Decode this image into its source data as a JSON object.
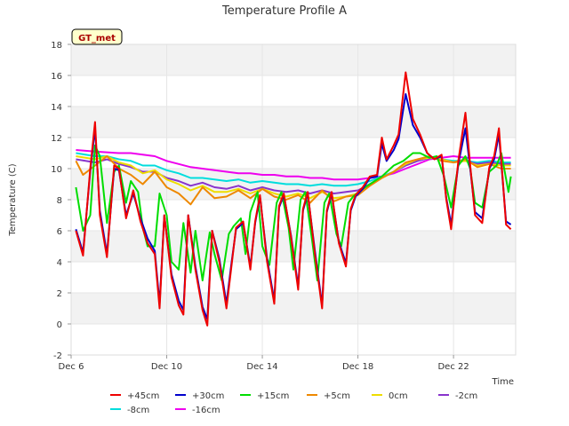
{
  "chart_data": {
    "type": "line",
    "title": "Temperature Profile A",
    "xlabel": "Time",
    "ylabel": "Temperature (C)",
    "badge": "GT_met",
    "ylim": [
      -2,
      18
    ],
    "yticks": [
      "-2",
      "0",
      "2",
      "4",
      "6",
      "8",
      "10",
      "12",
      "14",
      "16",
      "18"
    ],
    "xlim_days": [
      6,
      24.6
    ],
    "xticks": [
      {
        "label": "Dec 6",
        "day": 6
      },
      {
        "label": "Dec 10",
        "day": 10
      },
      {
        "label": "Dec 14",
        "day": 14
      },
      {
        "label": "Dec 18",
        "day": 18
      },
      {
        "label": "Dec 22",
        "day": 22
      }
    ],
    "grid": true,
    "legend_position": "bottom",
    "series": [
      {
        "name": "+45cm",
        "color": "#ee0000",
        "x": [
          6.2,
          6.5,
          6.8,
          7.0,
          7.2,
          7.5,
          7.8,
          8.0,
          8.3,
          8.6,
          8.9,
          9.2,
          9.5,
          9.7,
          9.9,
          10.2,
          10.5,
          10.7,
          10.9,
          11.2,
          11.5,
          11.7,
          11.9,
          12.2,
          12.5,
          12.7,
          12.9,
          13.2,
          13.5,
          13.7,
          13.9,
          14.2,
          14.5,
          14.7,
          14.9,
          15.2,
          15.5,
          15.7,
          15.9,
          16.2,
          16.5,
          16.7,
          16.9,
          17.2,
          17.5,
          17.7,
          17.9,
          18.2,
          18.5,
          18.8,
          19.0,
          19.2,
          19.5,
          19.7,
          20.0,
          20.3,
          20.6,
          20.9,
          21.2,
          21.5,
          21.7,
          21.9,
          22.2,
          22.5,
          22.7,
          22.9,
          23.2,
          23.5,
          23.7,
          23.9,
          24.2,
          24.4
        ],
        "y": [
          6.0,
          4.4,
          10.0,
          13.0,
          7.0,
          4.3,
          10.2,
          10.0,
          6.8,
          8.6,
          6.6,
          5.2,
          4.5,
          1.0,
          7.0,
          3.0,
          1.2,
          0.6,
          7.0,
          3.5,
          0.9,
          -0.1,
          6.0,
          4.0,
          1.0,
          3.6,
          6.2,
          6.6,
          3.5,
          6.6,
          8.3,
          4.0,
          1.3,
          7.6,
          8.4,
          5.6,
          2.2,
          7.4,
          8.5,
          4.5,
          1.0,
          7.3,
          8.5,
          5.2,
          3.7,
          7.4,
          8.3,
          8.8,
          9.5,
          9.6,
          12.0,
          10.6,
          11.5,
          12.2,
          16.2,
          13.2,
          12.2,
          11.0,
          10.6,
          10.9,
          8.0,
          6.1,
          10.5,
          13.6,
          10.2,
          7.0,
          6.5,
          10.1,
          10.8,
          12.6,
          6.4,
          6.1
        ]
      },
      {
        "name": "+30cm",
        "color": "#0000cc",
        "x": [
          6.2,
          6.5,
          6.8,
          7.0,
          7.2,
          7.5,
          7.8,
          8.0,
          8.3,
          8.6,
          8.9,
          9.2,
          9.5,
          9.7,
          9.9,
          10.2,
          10.5,
          10.7,
          10.9,
          11.2,
          11.5,
          11.7,
          11.9,
          12.2,
          12.5,
          12.7,
          12.9,
          13.2,
          13.5,
          13.7,
          13.9,
          14.2,
          14.5,
          14.7,
          14.9,
          15.2,
          15.5,
          15.7,
          15.9,
          16.2,
          16.5,
          16.7,
          16.9,
          17.2,
          17.5,
          17.7,
          17.9,
          18.2,
          18.5,
          18.8,
          19.0,
          19.2,
          19.5,
          19.7,
          20.0,
          20.3,
          20.6,
          20.9,
          21.2,
          21.5,
          21.7,
          21.9,
          22.2,
          22.5,
          22.7,
          22.9,
          23.2,
          23.5,
          23.7,
          23.9,
          24.2,
          24.4
        ],
        "y": [
          6.1,
          4.6,
          9.8,
          12.6,
          7.3,
          4.5,
          10.0,
          9.9,
          7.0,
          8.4,
          6.8,
          5.5,
          4.7,
          1.3,
          7.0,
          3.2,
          1.5,
          0.9,
          7.0,
          3.7,
          1.1,
          0.3,
          6.0,
          4.2,
          1.3,
          3.8,
          6.1,
          6.5,
          3.7,
          6.5,
          8.2,
          4.2,
          1.5,
          7.5,
          8.3,
          5.7,
          2.4,
          7.3,
          8.4,
          4.7,
          1.2,
          7.2,
          8.4,
          5.3,
          3.9,
          7.3,
          8.2,
          8.7,
          9.4,
          9.5,
          11.6,
          10.5,
          11.2,
          11.9,
          14.8,
          12.8,
          12.0,
          11.0,
          10.6,
          10.8,
          8.1,
          6.4,
          10.3,
          12.6,
          10.0,
          7.2,
          6.8,
          10.0,
          10.6,
          12.2,
          6.6,
          6.4
        ]
      },
      {
        "name": "+15cm",
        "color": "#00dd00",
        "x": [
          6.2,
          6.5,
          6.8,
          7.0,
          7.2,
          7.5,
          7.8,
          8.0,
          8.3,
          8.5,
          8.8,
          9.0,
          9.2,
          9.5,
          9.7,
          10.0,
          10.2,
          10.5,
          10.7,
          11.0,
          11.2,
          11.5,
          11.8,
          12.0,
          12.3,
          12.6,
          12.8,
          13.1,
          13.3,
          13.5,
          13.8,
          14.0,
          14.3,
          14.6,
          14.8,
          15.1,
          15.3,
          15.6,
          15.8,
          16.1,
          16.3,
          16.6,
          16.8,
          17.1,
          17.3,
          17.6,
          17.8,
          18.1,
          18.5,
          19.0,
          19.5,
          19.9,
          20.3,
          20.6,
          21.0,
          21.3,
          21.6,
          21.9,
          22.2,
          22.5,
          22.7,
          22.9,
          23.2,
          23.5,
          23.8,
          24.0,
          24.3,
          24.4
        ],
        "y": [
          8.8,
          6.0,
          7.0,
          11.5,
          10.8,
          6.5,
          9.8,
          10.2,
          7.8,
          9.2,
          8.5,
          6.2,
          5.0,
          5.0,
          8.4,
          7.0,
          4.0,
          3.5,
          6.5,
          3.3,
          6.0,
          2.8,
          5.9,
          4.5,
          2.8,
          5.8,
          6.3,
          6.8,
          4.5,
          7.2,
          8.5,
          5.0,
          3.8,
          7.8,
          8.5,
          6.2,
          3.5,
          8.0,
          8.5,
          5.2,
          2.8,
          7.8,
          8.4,
          5.8,
          5.0,
          7.8,
          8.2,
          8.6,
          9.0,
          9.5,
          10.2,
          10.5,
          11.0,
          11.0,
          10.7,
          10.8,
          9.5,
          7.5,
          10.2,
          10.8,
          10.0,
          7.8,
          7.5,
          9.8,
          10.2,
          11.0,
          8.5,
          9.5
        ]
      },
      {
        "name": "+5cm",
        "color": "#ee8800",
        "x": [
          6.2,
          6.5,
          7.0,
          7.5,
          8.0,
          8.5,
          9.0,
          9.5,
          10.0,
          10.5,
          11.0,
          11.5,
          12.0,
          12.5,
          13.0,
          13.5,
          14.0,
          14.5,
          15.0,
          15.5,
          16.0,
          16.5,
          17.0,
          17.5,
          18.0,
          18.5,
          19.0,
          19.5,
          20.0,
          20.5,
          21.0,
          21.5,
          22.0,
          22.5,
          23.0,
          23.5,
          24.0,
          24.4
        ],
        "y": [
          10.5,
          9.6,
          10.2,
          10.8,
          10.0,
          9.6,
          9.0,
          9.8,
          8.8,
          8.4,
          7.7,
          8.8,
          8.1,
          8.2,
          8.6,
          8.1,
          8.7,
          8.2,
          8.0,
          8.3,
          7.8,
          8.6,
          7.9,
          8.2,
          8.3,
          8.9,
          9.4,
          9.8,
          10.4,
          10.6,
          10.8,
          10.5,
          10.4,
          10.6,
          10.1,
          10.3,
          10.0,
          10.0
        ]
      },
      {
        "name": "0cm",
        "color": "#eedd00",
        "x": [
          6.2,
          7.0,
          7.5,
          8.0,
          8.5,
          9.0,
          9.5,
          10.0,
          10.5,
          11.0,
          11.5,
          12.0,
          12.5,
          13.0,
          13.5,
          14.0,
          14.5,
          15.0,
          15.5,
          16.0,
          16.5,
          17.0,
          17.5,
          18.0,
          18.5,
          19.0,
          19.5,
          20.0,
          20.5,
          21.0,
          21.5,
          22.0,
          22.5,
          23.0,
          23.5,
          24.0,
          24.4
        ],
        "y": [
          10.8,
          10.6,
          10.8,
          10.4,
          10.2,
          9.7,
          9.9,
          9.3,
          9.0,
          8.6,
          8.9,
          8.5,
          8.5,
          8.7,
          8.4,
          8.7,
          8.4,
          8.2,
          8.4,
          8.1,
          8.5,
          8.1,
          8.2,
          8.4,
          8.9,
          9.4,
          9.8,
          10.3,
          10.6,
          10.7,
          10.6,
          10.4,
          10.5,
          10.2,
          10.3,
          10.2,
          10.2
        ]
      },
      {
        "name": "-2cm",
        "color": "#8833cc",
        "x": [
          6.2,
          7.0,
          7.5,
          8.0,
          8.5,
          9.0,
          9.5,
          10.0,
          10.5,
          11.0,
          11.5,
          12.0,
          12.5,
          13.0,
          13.5,
          14.0,
          14.5,
          15.0,
          15.5,
          16.0,
          16.5,
          17.0,
          17.5,
          18.0,
          18.5,
          19.0,
          19.5,
          20.0,
          20.5,
          21.0,
          21.5,
          22.0,
          22.5,
          23.0,
          23.5,
          24.0,
          24.4
        ],
        "y": [
          10.6,
          10.4,
          10.6,
          10.3,
          10.1,
          9.8,
          9.8,
          9.4,
          9.2,
          8.9,
          9.1,
          8.8,
          8.7,
          8.9,
          8.6,
          8.8,
          8.6,
          8.5,
          8.6,
          8.4,
          8.6,
          8.4,
          8.5,
          8.6,
          9.0,
          9.4,
          9.8,
          10.2,
          10.5,
          10.7,
          10.6,
          10.4,
          10.5,
          10.3,
          10.4,
          10.3,
          10.3
        ]
      },
      {
        "name": "-8cm",
        "color": "#00dddd",
        "x": [
          6.2,
          7.0,
          7.5,
          8.0,
          8.5,
          9.0,
          9.5,
          10.0,
          10.5,
          11.0,
          11.5,
          12.0,
          12.5,
          13.0,
          13.5,
          14.0,
          14.5,
          15.0,
          15.5,
          16.0,
          16.5,
          17.0,
          17.5,
          18.0,
          18.5,
          19.0,
          19.5,
          20.0,
          20.5,
          21.0,
          21.5,
          22.0,
          22.5,
          23.0,
          23.5,
          24.0,
          24.4
        ],
        "y": [
          11.0,
          10.8,
          10.8,
          10.6,
          10.5,
          10.2,
          10.2,
          9.9,
          9.7,
          9.4,
          9.4,
          9.3,
          9.2,
          9.3,
          9.1,
          9.2,
          9.1,
          9.0,
          9.0,
          8.9,
          9.0,
          8.9,
          8.9,
          9.0,
          9.2,
          9.5,
          9.8,
          10.2,
          10.5,
          10.7,
          10.6,
          10.5,
          10.5,
          10.4,
          10.5,
          10.4,
          10.4
        ]
      },
      {
        "name": "-16cm",
        "color": "#ee00ee",
        "x": [
          6.2,
          7.0,
          8.0,
          8.5,
          9.0,
          9.5,
          10.0,
          10.5,
          11.0,
          11.5,
          12.0,
          12.5,
          13.0,
          13.5,
          14.0,
          14.5,
          15.0,
          15.5,
          16.0,
          16.5,
          17.0,
          17.5,
          18.0,
          18.5,
          19.0,
          19.5,
          20.0,
          20.5,
          21.0,
          21.5,
          22.0,
          22.5,
          23.0,
          23.5,
          24.0,
          24.4
        ],
        "y": [
          11.2,
          11.1,
          11.0,
          11.0,
          10.9,
          10.8,
          10.5,
          10.3,
          10.1,
          10.0,
          9.9,
          9.8,
          9.7,
          9.7,
          9.6,
          9.6,
          9.5,
          9.5,
          9.4,
          9.4,
          9.3,
          9.3,
          9.3,
          9.4,
          9.5,
          9.7,
          10.0,
          10.3,
          10.6,
          10.7,
          10.8,
          10.7,
          10.7,
          10.7,
          10.7,
          10.7
        ]
      }
    ]
  }
}
